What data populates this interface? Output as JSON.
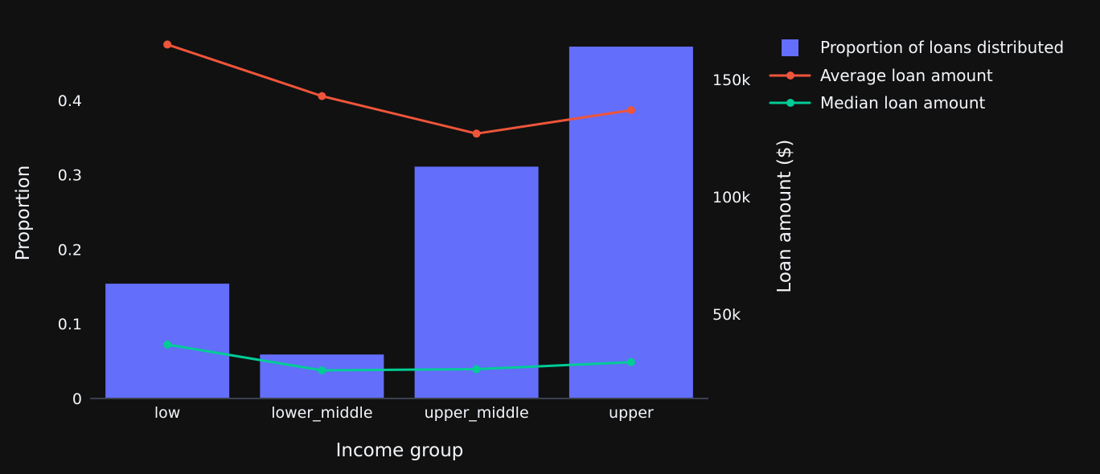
{
  "chart_data": {
    "type": "bar",
    "categories": [
      "low",
      "lower_middle",
      "upper_middle",
      "upper"
    ],
    "series": [
      {
        "name": "Proportion of loans distributed",
        "type": "bar",
        "axis": "y",
        "color": "#636efa",
        "values": [
          0.154,
          0.059,
          0.311,
          0.472
        ]
      },
      {
        "name": "Average loan amount",
        "type": "line",
        "axis": "y2",
        "color": "#ef553b",
        "values": [
          165000,
          143000,
          127000,
          137000
        ]
      },
      {
        "name": "Median loan amount",
        "type": "line",
        "axis": "y2",
        "color": "#00cc96",
        "values": [
          37000,
          26000,
          26500,
          29500
        ]
      }
    ],
    "xlabel": "Income group",
    "ylabel": "Proportion",
    "y2label": "Loan amount ($)",
    "y_ticks": [
      {
        "value": 0,
        "label": "0"
      },
      {
        "value": 0.1,
        "label": "0.1"
      },
      {
        "value": 0.2,
        "label": "0.2"
      },
      {
        "value": 0.3,
        "label": "0.3"
      },
      {
        "value": 0.4,
        "label": "0.4"
      }
    ],
    "y2_ticks": [
      {
        "value": 50000,
        "label": "50k"
      },
      {
        "value": 100000,
        "label": "100k"
      },
      {
        "value": 150000,
        "label": "150k"
      }
    ],
    "ylim": [
      0,
      0.4968
    ],
    "y2lim": [
      14000,
      172000
    ],
    "grid": false,
    "legend_position": "top-right",
    "background_color": "#111111"
  }
}
